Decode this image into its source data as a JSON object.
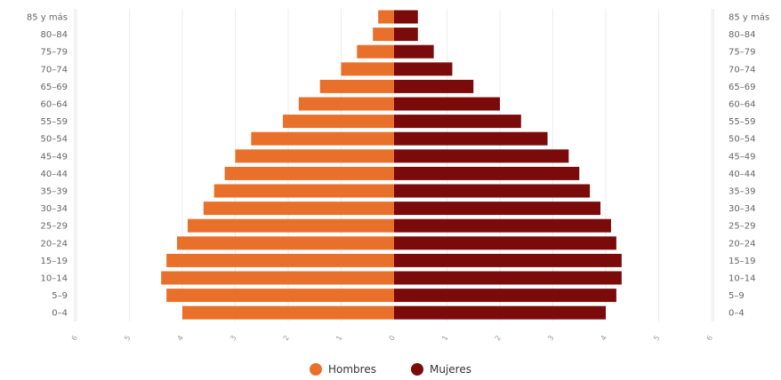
{
  "chart_data": {
    "type": "bar",
    "orientation": "horizontal",
    "layout": "population-pyramid",
    "categories": [
      "85 y más",
      "80–84",
      "75–79",
      "70–74",
      "65–69",
      "60–64",
      "55–59",
      "50–54",
      "45–49",
      "40–44",
      "35–39",
      "30–34",
      "25–29",
      "20–24",
      "15–19",
      "10–14",
      "5–9",
      "0–4"
    ],
    "series": [
      {
        "name": "Hombres",
        "color": "#e8702a",
        "side": "left",
        "values": [
          0.3,
          0.4,
          0.7,
          1.0,
          1.4,
          1.8,
          2.1,
          2.7,
          3.0,
          3.2,
          3.4,
          3.6,
          3.9,
          4.1,
          4.3,
          4.4,
          4.3,
          4.0
        ]
      },
      {
        "name": "Mujeres",
        "color": "#7b0a0a",
        "side": "right",
        "values": [
          0.45,
          0.45,
          0.75,
          1.1,
          1.5,
          2.0,
          2.4,
          2.9,
          3.3,
          3.5,
          3.7,
          3.9,
          4.1,
          4.2,
          4.3,
          4.3,
          4.2,
          4.0
        ]
      }
    ],
    "x_ticks": [
      "6",
      "5",
      "4",
      "3",
      "2",
      "1",
      "0",
      "1",
      "2",
      "3",
      "4",
      "5",
      "6"
    ],
    "xlim": [
      -6,
      6
    ],
    "grid": true,
    "legend_position": "bottom-center"
  }
}
